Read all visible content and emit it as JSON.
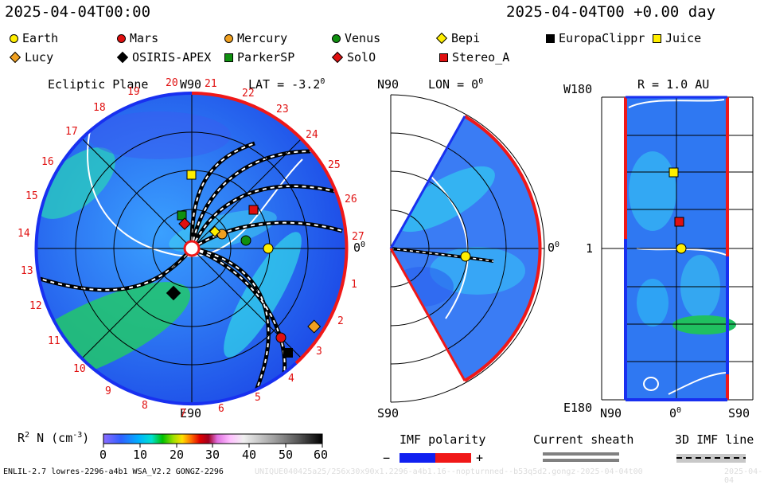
{
  "header": {
    "left_timestamp": "2025-04-04T00:00",
    "right_timestamp": "2025-04-04T00 +0.00 day"
  },
  "legend": [
    {
      "label": "Earth",
      "shape": "circle",
      "color": "#ffee00"
    },
    {
      "label": "Mars",
      "shape": "circle",
      "color": "#e01010"
    },
    {
      "label": "Mercury",
      "shape": "circle",
      "color": "#f0a020"
    },
    {
      "label": "Venus",
      "shape": "circle",
      "color": "#109010"
    },
    {
      "label": "Bepi",
      "shape": "diamond",
      "color": "#ffee00"
    },
    {
      "label": "EuropaClippr",
      "shape": "square",
      "color": "#000000"
    },
    {
      "label": "Juice",
      "shape": "square",
      "color": "#ffee00"
    },
    {
      "label": "Lucy",
      "shape": "diamond",
      "color": "#f0a020"
    },
    {
      "label": "OSIRIS-APEX",
      "shape": "diamond",
      "color": "#000000"
    },
    {
      "label": "ParkerSP",
      "shape": "square",
      "color": "#109010"
    },
    {
      "label": "SolO",
      "shape": "diamond",
      "color": "#e01010"
    },
    {
      "label": "Stereo_A",
      "shape": "square",
      "color": "#e01010"
    }
  ],
  "ecliptic": {
    "title": "Ecliptic Plane",
    "top_label": "W90",
    "bottom_label": "E90",
    "right_label": "0",
    "lat_label": "LAT = -3.2",
    "degree_sup": "0",
    "carrington_ticks": [
      "20",
      "21",
      "22",
      "23",
      "24",
      "25",
      "26",
      "27",
      "1",
      "2",
      "3",
      "4",
      "5",
      "6",
      "7",
      "8",
      "9",
      "10",
      "11",
      "12",
      "13",
      "14",
      "15",
      "16",
      "17",
      "18",
      "19"
    ]
  },
  "meridional": {
    "top_label": "N90",
    "bottom_label": "S90",
    "lon_label": "LON = 0",
    "right_label": "0",
    "degree_sup": "0"
  },
  "radial": {
    "title": "R = 1.0 AU",
    "top_left": "W180",
    "mid_left": "1",
    "bottom_left": "E180",
    "x_left": "N90",
    "x_mid": "0",
    "x_right": "S90",
    "degree_sup": "0"
  },
  "colorbar": {
    "label": "R",
    "label_sup": "2",
    "label_rest": " N (cm",
    "unit_sup": "-3",
    "label_close": ")",
    "ticks": [
      "0",
      "10",
      "20",
      "30",
      "40",
      "50",
      "60"
    ]
  },
  "bottom_legend": {
    "imf_polarity": "IMF polarity",
    "minus": "−",
    "plus": "+",
    "current_sheath": "Current sheath",
    "imf_line": "3D IMF line"
  },
  "footer": {
    "model_info": "ENLIL-2.7 lowres-2296-a4b1 WSA_V2.2 GONGZ-2296",
    "run_info": "UNIQUE040425a25/256x30x90x1.2296-a4b1.16--nopturnned--b53q5d2.gongz-2025-04-04t00",
    "run_date": "2025-04-04"
  }
}
